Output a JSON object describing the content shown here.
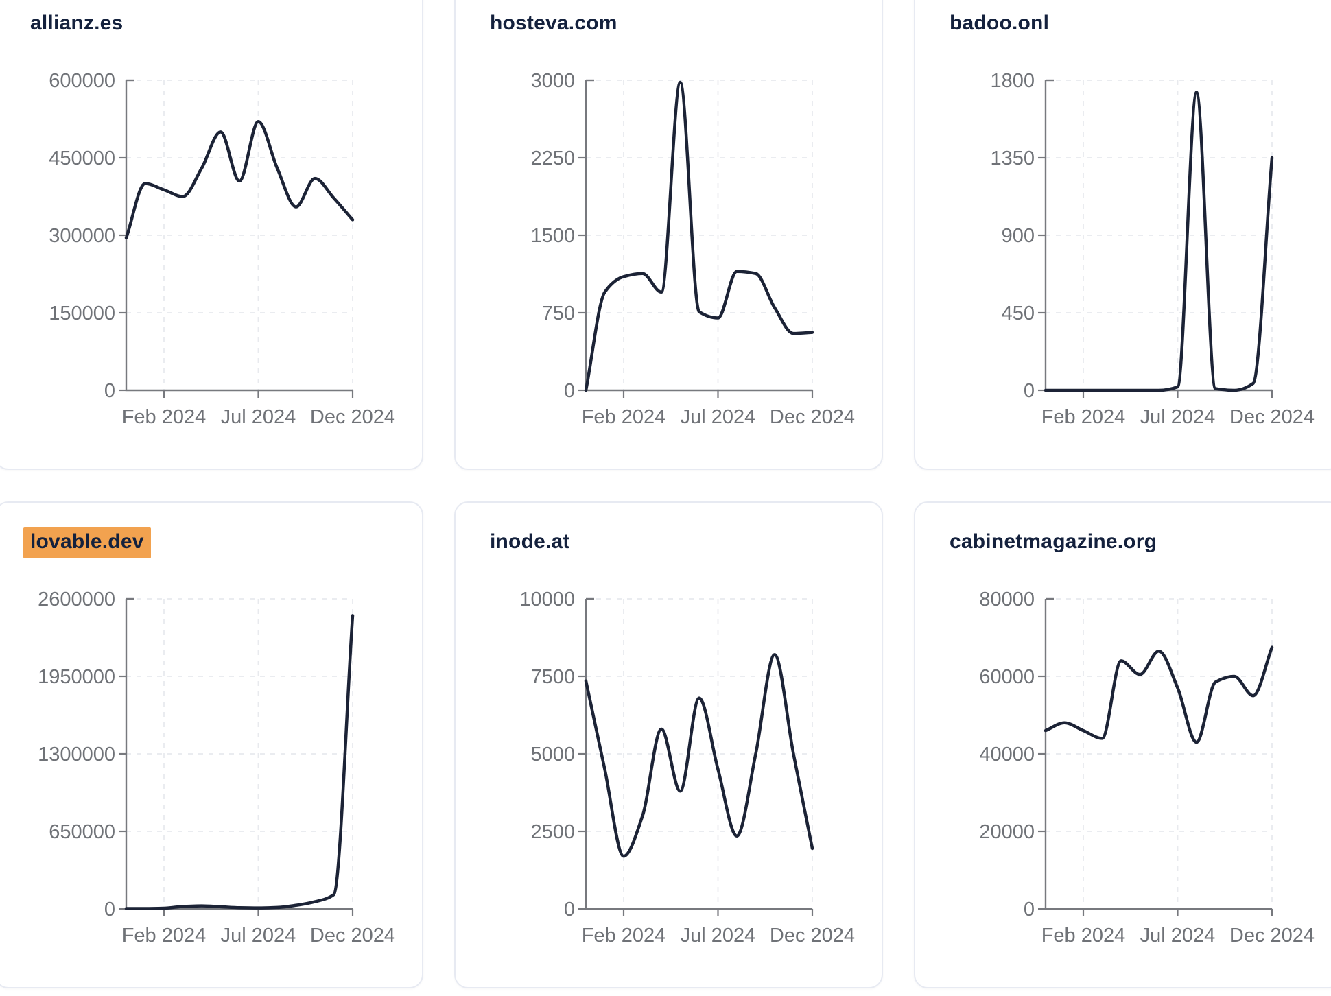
{
  "page": {
    "background": "#ffffff"
  },
  "colors": {
    "line": "#1c2336",
    "title": "#14213d",
    "axis": "#77797e",
    "tick_label": "#6f7277",
    "grid": "#e8eaee",
    "card_border": "#e7eaf2",
    "card_background": "#ffffff",
    "title_highlight": "#f2a24f"
  },
  "chart_data": [
    {
      "type": "line",
      "title": "allianz.es",
      "title_highlighted": false,
      "x_tick_labels": [
        "Feb 2024",
        "Jul 2024",
        "Dec 2024"
      ],
      "x_tick_month_index": [
        2,
        7,
        12
      ],
      "months": [
        "Dec 2023",
        "Jan 2024",
        "Feb 2024",
        "Mar 2024",
        "Apr 2024",
        "May 2024",
        "Jun 2024",
        "Jul 2024",
        "Aug 2024",
        "Sep 2024",
        "Oct 2024",
        "Nov 2024",
        "Dec 2024"
      ],
      "values": [
        295000,
        400000,
        388000,
        375000,
        430000,
        500000,
        405000,
        520000,
        430000,
        355000,
        410000,
        372000,
        330000
      ],
      "y_ticks": [
        0,
        150000,
        300000,
        450000,
        600000
      ],
      "ylim": [
        0,
        600000
      ],
      "grid": true,
      "legend": false
    },
    {
      "type": "line",
      "title": "hosteva.com",
      "title_highlighted": false,
      "x_tick_labels": [
        "Feb 2024",
        "Jul 2024",
        "Dec 2024"
      ],
      "x_tick_month_index": [
        2,
        7,
        12
      ],
      "months": [
        "Dec 2023",
        "Jan 2024",
        "Feb 2024",
        "Mar 2024",
        "Apr 2024",
        "May 2024",
        "Jun 2024",
        "Jul 2024",
        "Aug 2024",
        "Sep 2024",
        "Oct 2024",
        "Nov 2024",
        "Dec 2024"
      ],
      "values": [
        0,
        950,
        1100,
        1130,
        950,
        2980,
        760,
        700,
        1150,
        1130,
        800,
        550,
        560
      ],
      "y_ticks": [
        0,
        750,
        1500,
        2250,
        3000
      ],
      "ylim": [
        0,
        3000
      ],
      "grid": true,
      "legend": false
    },
    {
      "type": "line",
      "title": "badoo.onl",
      "title_highlighted": false,
      "x_tick_labels": [
        "Feb 2024",
        "Jul 2024",
        "Dec 2024"
      ],
      "x_tick_month_index": [
        2,
        7,
        12
      ],
      "months": [
        "Dec 2023",
        "Jan 2024",
        "Feb 2024",
        "Mar 2024",
        "Apr 2024",
        "May 2024",
        "Jun 2024",
        "Jul 2024",
        "Aug 2024",
        "Sep 2024",
        "Oct 2024",
        "Nov 2024",
        "Dec 2024"
      ],
      "values": [
        0,
        0,
        0,
        0,
        0,
        0,
        0,
        20,
        1730,
        10,
        0,
        40,
        1350
      ],
      "y_ticks": [
        0,
        450,
        900,
        1350,
        1800
      ],
      "ylim": [
        0,
        1800
      ],
      "grid": true,
      "legend": false
    },
    {
      "type": "line",
      "title": "lovable.dev",
      "title_highlighted": true,
      "x_tick_labels": [
        "Feb 2024",
        "Jul 2024",
        "Dec 2024"
      ],
      "x_tick_month_index": [
        2,
        7,
        12
      ],
      "months": [
        "Dec 2023",
        "Jan 2024",
        "Feb 2024",
        "Mar 2024",
        "Apr 2024",
        "May 2024",
        "Jun 2024",
        "Jul 2024",
        "Aug 2024",
        "Sep 2024",
        "Oct 2024",
        "Nov 2024",
        "Dec 2024"
      ],
      "values": [
        3000,
        3000,
        6000,
        20000,
        25000,
        18000,
        10000,
        8000,
        12000,
        30000,
        60000,
        120000,
        2460000
      ],
      "y_ticks": [
        0,
        650000,
        1300000,
        1950000,
        2600000
      ],
      "ylim": [
        0,
        2600000
      ],
      "grid": true,
      "legend": false
    },
    {
      "type": "line",
      "title": "inode.at",
      "title_highlighted": false,
      "x_tick_labels": [
        "Feb 2024",
        "Jul 2024",
        "Dec 2024"
      ],
      "x_tick_month_index": [
        2,
        7,
        12
      ],
      "months": [
        "Dec 2023",
        "Jan 2024",
        "Feb 2024",
        "Mar 2024",
        "Apr 2024",
        "May 2024",
        "Jun 2024",
        "Jul 2024",
        "Aug 2024",
        "Sep 2024",
        "Oct 2024",
        "Nov 2024",
        "Dec 2024"
      ],
      "values": [
        7350,
        4500,
        1700,
        3000,
        5800,
        3800,
        6800,
        4500,
        2350,
        5000,
        8200,
        5000,
        1950
      ],
      "y_ticks": [
        0,
        2500,
        5000,
        7500,
        10000
      ],
      "ylim": [
        0,
        10000
      ],
      "grid": true,
      "legend": false
    },
    {
      "type": "line",
      "title": "cabinetmagazine.org",
      "title_highlighted": false,
      "x_tick_labels": [
        "Feb 2024",
        "Jul 2024",
        "Dec 2024"
      ],
      "x_tick_month_index": [
        2,
        7,
        12
      ],
      "months": [
        "Dec 2023",
        "Jan 2024",
        "Feb 2024",
        "Mar 2024",
        "Apr 2024",
        "May 2024",
        "Jun 2024",
        "Jul 2024",
        "Aug 2024",
        "Sep 2024",
        "Oct 2024",
        "Nov 2024",
        "Dec 2024"
      ],
      "values": [
        46000,
        48000,
        46000,
        44000,
        64000,
        60500,
        66500,
        57000,
        43000,
        58500,
        60000,
        55000,
        67500
      ],
      "y_ticks": [
        0,
        20000,
        40000,
        60000,
        80000
      ],
      "ylim": [
        0,
        80000
      ],
      "grid": true,
      "legend": false
    }
  ]
}
